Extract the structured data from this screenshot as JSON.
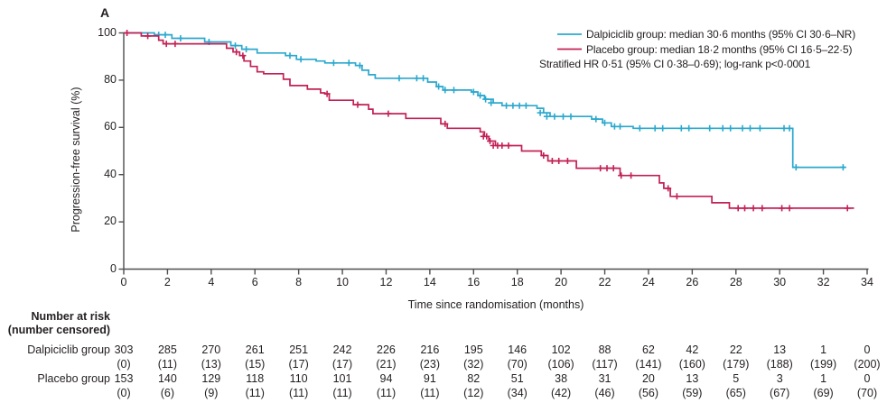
{
  "panel_label": "A",
  "colors": {
    "dalpiciclib": "#2BA8CE",
    "placebo": "#C22155",
    "axis": "#4D4E50",
    "text": "#231F20"
  },
  "y_axis": {
    "label": "Progression-free survival (%)",
    "ticks": [
      0,
      20,
      40,
      60,
      80,
      100
    ]
  },
  "x_axis": {
    "label": "Time since randomisation (months)",
    "ticks": [
      0,
      2,
      4,
      6,
      8,
      10,
      12,
      14,
      16,
      18,
      20,
      22,
      24,
      26,
      28,
      30,
      32,
      34
    ]
  },
  "legend": {
    "items": [
      {
        "label": "Dalpiciclib group: median 30·6 months (95% CI 30·6–NR)",
        "color": "#2BA8CE"
      },
      {
        "label": "Placebo group: median 18·2 months (95% CI 16·5–22·5)",
        "color": "#C22155"
      }
    ],
    "note": "Stratified HR 0·51 (95% CI 0·38–0·69); log-rank p<0·0001"
  },
  "chart_data": {
    "type": "line",
    "subtype": "kaplan-meier-step",
    "title": "",
    "xlabel": "Time since randomisation (months)",
    "ylabel": "Progression-free survival (%)",
    "xlim": [
      0,
      34
    ],
    "ylim": [
      0,
      100
    ],
    "grid": false,
    "legend_position": "top-right",
    "series": [
      {
        "name": "Dalpiciclib group",
        "median_months": "30·6",
        "ci": "30·6–NR",
        "color": "#2BA8CE",
        "steps": [
          [
            0,
            100
          ],
          [
            1.4,
            99.2
          ],
          [
            2.2,
            97.7
          ],
          [
            3.7,
            96.2
          ],
          [
            4.9,
            94.6
          ],
          [
            5.4,
            93.1
          ],
          [
            6.1,
            91.5
          ],
          [
            7.4,
            90.4
          ],
          [
            7.9,
            88.8
          ],
          [
            8.8,
            88.1
          ],
          [
            9.2,
            87.3
          ],
          [
            10.6,
            86.2
          ],
          [
            10.9,
            84.2
          ],
          [
            11.2,
            82.3
          ],
          [
            11.5,
            80.8
          ],
          [
            13.9,
            79.2
          ],
          [
            14.3,
            77.3
          ],
          [
            14.6,
            75.8
          ],
          [
            15.9,
            75.0
          ],
          [
            16.2,
            73.5
          ],
          [
            16.5,
            71.9
          ],
          [
            16.9,
            70.4
          ],
          [
            17.3,
            69.2
          ],
          [
            18.9,
            68.1
          ],
          [
            19.2,
            66.2
          ],
          [
            19.5,
            64.6
          ],
          [
            21.4,
            63.5
          ],
          [
            21.9,
            61.9
          ],
          [
            22.3,
            60.4
          ],
          [
            23.3,
            59.6
          ],
          [
            30.6,
            43.1
          ],
          [
            33.0,
            43.1
          ]
        ],
        "censors": [
          [
            1.6,
            99.2
          ],
          [
            1.9,
            99.2
          ],
          [
            2.6,
            97.7
          ],
          [
            3.9,
            96.2
          ],
          [
            5.1,
            94.6
          ],
          [
            5.6,
            93.1
          ],
          [
            7.6,
            90.4
          ],
          [
            8.1,
            88.8
          ],
          [
            9.6,
            87.3
          ],
          [
            10.3,
            87.3
          ],
          [
            10.8,
            86.2
          ],
          [
            12.6,
            80.8
          ],
          [
            13.4,
            80.8
          ],
          [
            13.7,
            80.8
          ],
          [
            14.4,
            77.3
          ],
          [
            14.7,
            75.8
          ],
          [
            15.1,
            75.8
          ],
          [
            16.0,
            75.0
          ],
          [
            16.3,
            73.5
          ],
          [
            16.55,
            71.9
          ],
          [
            16.8,
            70.4
          ],
          [
            17.5,
            69.2
          ],
          [
            17.8,
            69.2
          ],
          [
            18.1,
            69.2
          ],
          [
            18.4,
            69.2
          ],
          [
            19.05,
            66.2
          ],
          [
            19.35,
            64.6
          ],
          [
            19.7,
            64.6
          ],
          [
            20.1,
            64.6
          ],
          [
            20.45,
            64.6
          ],
          [
            21.6,
            63.5
          ],
          [
            22.0,
            61.9
          ],
          [
            22.45,
            60.4
          ],
          [
            22.7,
            60.4
          ],
          [
            23.6,
            59.6
          ],
          [
            24.3,
            59.6
          ],
          [
            24.65,
            59.6
          ],
          [
            25.5,
            59.6
          ],
          [
            25.85,
            59.6
          ],
          [
            26.8,
            59.6
          ],
          [
            27.4,
            59.6
          ],
          [
            27.75,
            59.6
          ],
          [
            28.3,
            59.6
          ],
          [
            28.65,
            59.6
          ],
          [
            29.1,
            59.6
          ],
          [
            30.2,
            59.6
          ],
          [
            30.45,
            59.6
          ],
          [
            30.75,
            43.1
          ],
          [
            32.9,
            43.1
          ]
        ]
      },
      {
        "name": "Placebo group",
        "median_months": "18·2",
        "ci": "16·5–22·5",
        "color": "#C22155",
        "steps": [
          [
            0,
            100
          ],
          [
            0.8,
            98.7
          ],
          [
            1.6,
            96.9
          ],
          [
            1.8,
            95.4
          ],
          [
            4.7,
            93.5
          ],
          [
            5.0,
            91.9
          ],
          [
            5.3,
            90.4
          ],
          [
            5.5,
            88.1
          ],
          [
            5.8,
            85.8
          ],
          [
            6.1,
            83.5
          ],
          [
            6.4,
            82.7
          ],
          [
            7.3,
            80.4
          ],
          [
            7.6,
            77.7
          ],
          [
            8.4,
            76.2
          ],
          [
            9.0,
            74.6
          ],
          [
            9.2,
            74.2
          ],
          [
            9.4,
            71.5
          ],
          [
            10.5,
            69.6
          ],
          [
            11.2,
            67.7
          ],
          [
            11.4,
            65.8
          ],
          [
            12.9,
            63.8
          ],
          [
            14.5,
            61.5
          ],
          [
            14.8,
            59.6
          ],
          [
            16.3,
            58.1
          ],
          [
            16.5,
            56.2
          ],
          [
            16.7,
            54.2
          ],
          [
            17.0,
            52.3
          ],
          [
            18.2,
            50.0
          ],
          [
            19.1,
            48.1
          ],
          [
            19.4,
            45.8
          ],
          [
            20.7,
            42.7
          ],
          [
            22.7,
            39.6
          ],
          [
            24.5,
            36.5
          ],
          [
            24.7,
            34.2
          ],
          [
            25.0,
            30.8
          ],
          [
            26.9,
            28.1
          ],
          [
            27.7,
            25.8
          ],
          [
            33.4,
            25.8
          ]
        ],
        "censors": [
          [
            0.15,
            100
          ],
          [
            1.1,
            98.7
          ],
          [
            1.95,
            95.4
          ],
          [
            2.35,
            95.4
          ],
          [
            5.15,
            91.9
          ],
          [
            5.45,
            90.4
          ],
          [
            9.3,
            74.2
          ],
          [
            10.7,
            69.6
          ],
          [
            12.1,
            65.8
          ],
          [
            14.7,
            61.5
          ],
          [
            16.45,
            56.2
          ],
          [
            16.6,
            56.2
          ],
          [
            16.75,
            54.2
          ],
          [
            16.9,
            52.3
          ],
          [
            17.1,
            52.3
          ],
          [
            17.3,
            52.3
          ],
          [
            17.6,
            52.3
          ],
          [
            19.2,
            48.1
          ],
          [
            19.6,
            45.8
          ],
          [
            19.9,
            45.8
          ],
          [
            20.3,
            45.8
          ],
          [
            21.8,
            42.7
          ],
          [
            22.1,
            42.7
          ],
          [
            22.4,
            42.7
          ],
          [
            22.75,
            39.6
          ],
          [
            23.2,
            39.6
          ],
          [
            24.9,
            34.2
          ],
          [
            25.3,
            30.8
          ],
          [
            28.1,
            25.8
          ],
          [
            28.4,
            25.8
          ],
          [
            28.8,
            25.8
          ],
          [
            29.2,
            25.8
          ],
          [
            30.1,
            25.8
          ],
          [
            30.45,
            25.8
          ],
          [
            33.1,
            25.8
          ]
        ]
      }
    ]
  },
  "risk_table": {
    "header_line1": "Number at risk",
    "header_line2": "(number censored)",
    "rows": [
      {
        "label": "Dalpiciclib group",
        "at_risk": [
          "303",
          "285",
          "270",
          "261",
          "251",
          "242",
          "226",
          "216",
          "195",
          "146",
          "102",
          "88",
          "62",
          "42",
          "22",
          "13",
          "1",
          "0"
        ],
        "censored": [
          "(0)",
          "(11)",
          "(13)",
          "(15)",
          "(17)",
          "(17)",
          "(21)",
          "(23)",
          "(32)",
          "(70)",
          "(106)",
          "(117)",
          "(141)",
          "(160)",
          "(179)",
          "(188)",
          "(199)",
          "(200)"
        ]
      },
      {
        "label": "Placebo group",
        "at_risk": [
          "153",
          "140",
          "129",
          "118",
          "110",
          "101",
          "94",
          "91",
          "82",
          "51",
          "38",
          "31",
          "20",
          "13",
          "5",
          "3",
          "1",
          "0"
        ],
        "censored": [
          "(0)",
          "(6)",
          "(9)",
          "(11)",
          "(11)",
          "(11)",
          "(11)",
          "(11)",
          "(12)",
          "(34)",
          "(42)",
          "(46)",
          "(56)",
          "(59)",
          "(65)",
          "(67)",
          "(69)",
          "(70)"
        ]
      }
    ]
  }
}
